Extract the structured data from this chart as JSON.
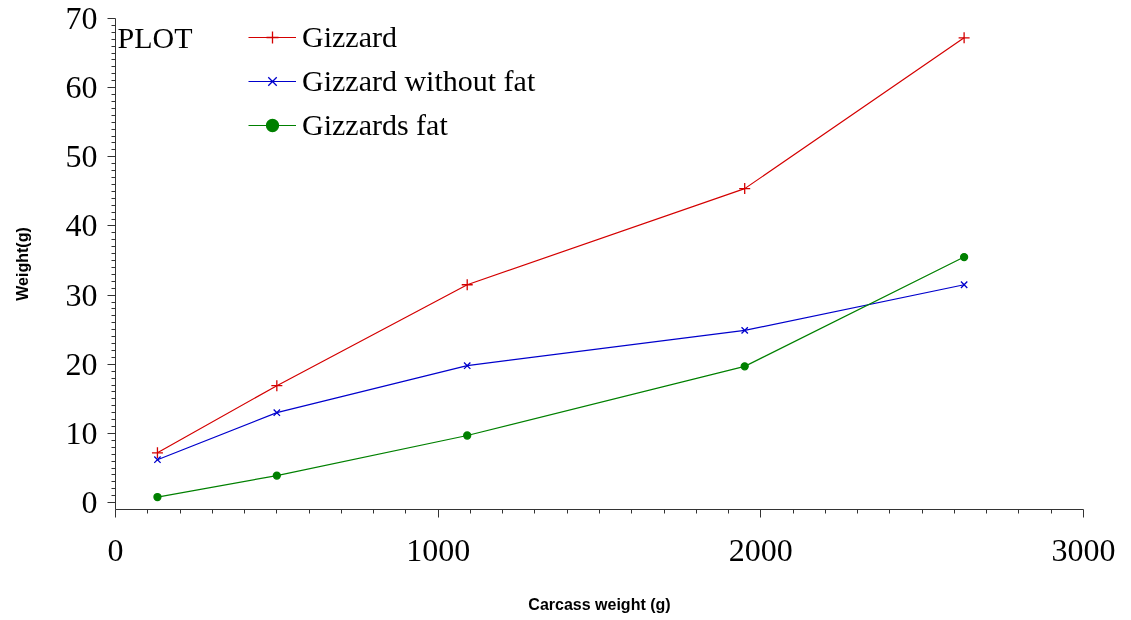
{
  "chart_data": {
    "type": "line",
    "xlabel": "Carcass weight (g)",
    "ylabel": "Weight(g)",
    "legend_title": "PLOT",
    "x": [
      130,
      500,
      1090,
      1950,
      2630
    ],
    "xlim": [
      0,
      3000
    ],
    "xticks": [
      0,
      1000,
      2000,
      3000
    ],
    "ylim": [
      -1,
      70
    ],
    "yticks": [
      0,
      10,
      20,
      30,
      40,
      50,
      60,
      70
    ],
    "grid": false,
    "legend": "top left",
    "line_style": "solid",
    "series": [
      {
        "name": "Gizzard",
        "color": "#d40000",
        "marker": "cross",
        "values": [
          7.2,
          16.9,
          31.5,
          45.4,
          67.2
        ]
      },
      {
        "name": "Gizzard without fat",
        "color": "#0000cc",
        "marker": "x",
        "values": [
          6.2,
          13.0,
          19.8,
          24.9,
          31.5
        ]
      },
      {
        "name": "Gizzards fat",
        "color": "#008000",
        "marker": "circle",
        "values": [
          0.8,
          3.9,
          9.7,
          19.7,
          35.5
        ]
      }
    ]
  }
}
